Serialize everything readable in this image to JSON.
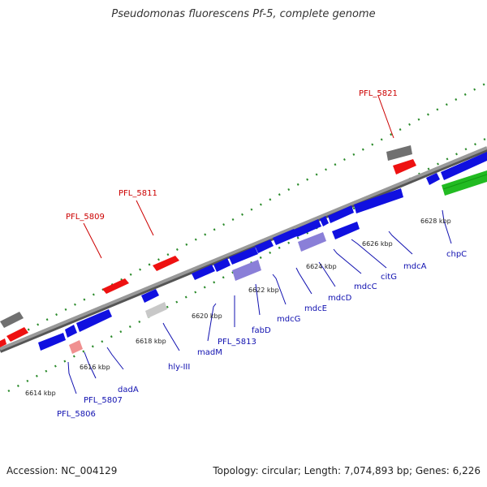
{
  "header": {
    "title": "Pseudomonas fluorescens Pf-5, complete genome"
  },
  "footer": {
    "accession": "Accession: NC_004129",
    "topology": "Topology: circular; Length: 7,074,893 bp; Genes: 6,226"
  },
  "colors": {
    "background": "#ffffff",
    "backbone": "#888888",
    "tick_dots": "#2a8a2a",
    "gene_forward": "#1010e0",
    "gene_red": "#ee1111",
    "gene_gray": "#707070",
    "gene_lightgray": "#c8c8c8",
    "gene_purple": "#8a7fd8",
    "gene_pink": "#f09090",
    "gene_green": "#22bb22",
    "label_blue": "#1010b0",
    "label_red": "#cc0000"
  },
  "scale_labels": [
    "6614 kbp",
    "6616 kbp",
    "6618 kbp",
    "6620 kbp",
    "6622 kbp",
    "6624 kbp",
    "6626 kbp",
    "6628 kbp"
  ],
  "gene_labels_blue": [
    "PFL_5806",
    "PFL_5807",
    "dadA",
    "hly-III",
    "madM",
    "PFL_5813",
    "fabD",
    "mdcG",
    "mdcE",
    "mdcD",
    "mdcC",
    "citG",
    "mdcA",
    "chpC"
  ],
  "gene_labels_red": [
    "PFL_5809",
    "PFL_5811",
    "PFL_5821"
  ]
}
